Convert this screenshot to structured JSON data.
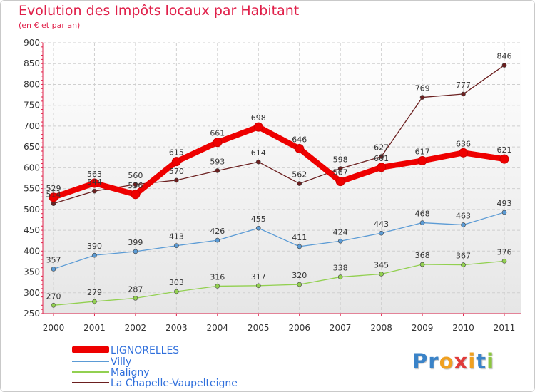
{
  "title": "Evolution des Impôts locaux par Habitant",
  "subtitle": "(en € et par an)",
  "logo": {
    "letters": [
      "P",
      "r",
      "o",
      "x",
      "i",
      "t",
      "i"
    ],
    "colors": [
      "#3a83c8",
      "#3a83c8",
      "#f0a020",
      "#e03a3a",
      "#f0a020",
      "#3a83c8",
      "#8cc63f"
    ]
  },
  "chart_data": {
    "type": "line",
    "x": [
      "2000",
      "2001",
      "2002",
      "2003",
      "2004",
      "2005",
      "2006",
      "2007",
      "2008",
      "2009",
      "2010",
      "2011"
    ],
    "ylim": [
      250,
      900
    ],
    "yticks": [
      250,
      300,
      350,
      400,
      450,
      500,
      550,
      600,
      650,
      700,
      750,
      800,
      850,
      900
    ],
    "grid": true,
    "legend_position": "bottom-left",
    "series": [
      {
        "name": "LIGNORELLES",
        "color": "#ee0000",
        "bold": true,
        "values": [
          529,
          563,
          536,
          615,
          661,
          698,
          646,
          567,
          601,
          617,
          636,
          621
        ]
      },
      {
        "name": "Villy",
        "color": "#5b9bd5",
        "bold": false,
        "values": [
          357,
          390,
          399,
          413,
          426,
          455,
          411,
          424,
          443,
          468,
          463,
          493
        ]
      },
      {
        "name": "Maligny",
        "color": "#92d050",
        "bold": false,
        "values": [
          270,
          279,
          287,
          303,
          316,
          317,
          320,
          338,
          345,
          368,
          367,
          376
        ]
      },
      {
        "name": "La Chapelle-Vaupelteigne",
        "color": "#6b1f1f",
        "bold": false,
        "values": [
          514,
          544,
          560,
          570,
          593,
          614,
          562,
          598,
          627,
          769,
          777,
          846
        ]
      }
    ]
  }
}
